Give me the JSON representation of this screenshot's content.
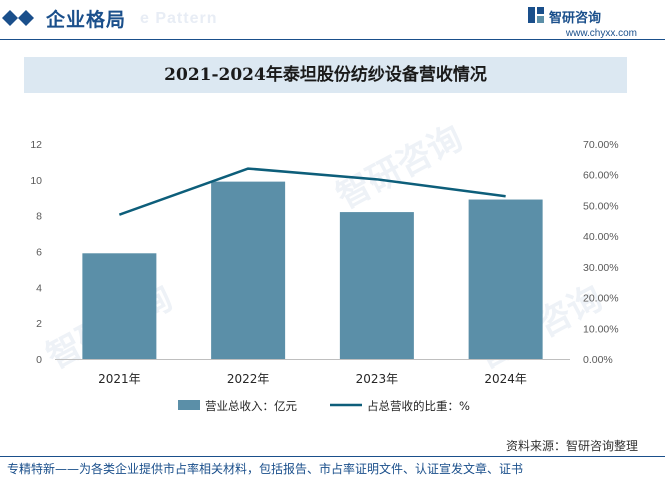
{
  "header": {
    "section_title": "企业格局",
    "ghost_text": "e Pattern",
    "logo_text": "智研咨询",
    "site_url": "www.chyxx.com"
  },
  "watermark": "智研咨询",
  "chart_data": {
    "type": "bar",
    "title": "2021-2024年泰坦股份纺纱设备营收情况",
    "categories": [
      "2021年",
      "2022年",
      "2023年",
      "2024年"
    ],
    "series": [
      {
        "name": "营业总收入：亿元",
        "type": "bar",
        "axis": "left",
        "color": "#5b8fa8",
        "values": [
          5.9,
          9.9,
          8.2,
          8.9
        ]
      },
      {
        "name": "占总营收的比重：%",
        "type": "line",
        "axis": "right",
        "color": "#0d5e7a",
        "values": [
          0.47,
          0.62,
          0.585,
          0.53
        ]
      }
    ],
    "left_axis": {
      "ylim": [
        0,
        12
      ],
      "ticks": [
        "0",
        "2",
        "4",
        "6",
        "8",
        "10",
        "12"
      ]
    },
    "right_axis": {
      "ylim": [
        0,
        0.7
      ],
      "ticks": [
        "0.00%",
        "10.00%",
        "20.00%",
        "30.00%",
        "40.00%",
        "50.00%",
        "60.00%",
        "70.00%"
      ]
    },
    "grid": false,
    "legend_position": "bottom"
  },
  "footer": {
    "source": "资料来源：智研咨询整理",
    "note": "专精特新——为各类企业提供市占率相关材料，包括报告、市占率证明文件、认证宣发文章、证书"
  }
}
